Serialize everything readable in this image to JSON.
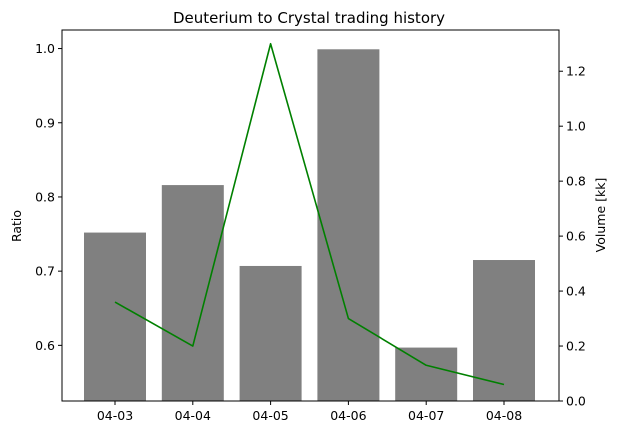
{
  "chart_data": {
    "type": "bar+line",
    "title": "Deuterium to Crystal trading history",
    "categories": [
      "04-03",
      "04-04",
      "04-05",
      "04-06",
      "04-07",
      "04-08"
    ],
    "left_axis": {
      "label": "Ratio",
      "ylim": [
        0.525,
        1.025
      ],
      "ticks": [
        0.6,
        0.7,
        0.8,
        0.9,
        1.0
      ],
      "tick_labels": [
        "0.6",
        "0.7",
        "0.8",
        "0.9",
        "1.0"
      ]
    },
    "right_axis": {
      "label": "Volume [kk]",
      "ylim": [
        0.0,
        1.35
      ],
      "ticks": [
        0.0,
        0.2,
        0.4,
        0.6,
        0.8,
        1.0,
        1.2
      ],
      "tick_labels": [
        "0.0",
        "0.2",
        "0.4",
        "0.6",
        "0.8",
        "1.0",
        "1.2"
      ]
    },
    "series": [
      {
        "kind": "bar",
        "axis": "left",
        "color": "#808080",
        "values": [
          0.752,
          0.816,
          0.707,
          0.999,
          0.597,
          0.715
        ]
      },
      {
        "kind": "line",
        "axis": "right",
        "color": "#008000",
        "values": [
          0.36,
          0.2,
          1.3,
          0.3,
          0.13,
          0.06
        ]
      }
    ],
    "grid": false
  }
}
